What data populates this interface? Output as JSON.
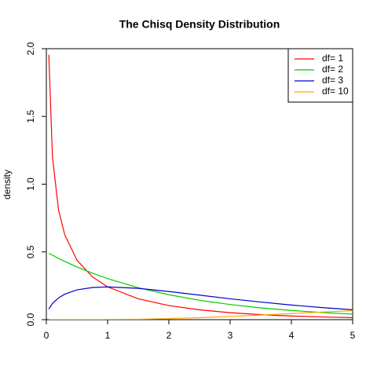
{
  "chart_data": {
    "type": "line",
    "title": "The Chisq Density Distribution",
    "y_label": "density",
    "x": [
      0.04,
      0.1,
      0.2,
      0.3,
      0.5,
      0.75,
      1,
      1.5,
      2,
      2.5,
      3,
      3.5,
      4,
      4.5,
      5
    ],
    "series": [
      {
        "name": "df= 1",
        "color": "#ff0000",
        "values": [
          1.955,
          1.2,
          0.807,
          0.627,
          0.439,
          0.317,
          0.242,
          0.154,
          0.104,
          0.0723,
          0.0514,
          0.0371,
          0.027,
          0.0198,
          0.0146
        ]
      },
      {
        "name": "df= 2",
        "color": "#00cc00",
        "values": [
          0.49,
          0.476,
          0.452,
          0.43,
          0.389,
          0.344,
          0.303,
          0.236,
          0.184,
          0.143,
          0.112,
          0.087,
          0.068,
          0.053,
          0.041
        ]
      },
      {
        "name": "df= 3",
        "color": "#0000cc",
        "values": [
          0.078,
          0.12,
          0.161,
          0.188,
          0.22,
          0.237,
          0.242,
          0.231,
          0.208,
          0.181,
          0.154,
          0.13,
          0.108,
          0.089,
          0.073
        ]
      },
      {
        "name": "df= 10",
        "color": "#ffa500",
        "values": [
          0,
          0,
          0,
          0,
          0,
          0,
          0.0008,
          0.0031,
          0.0077,
          0.0146,
          0.0235,
          0.034,
          0.0451,
          0.0563,
          0.0668
        ]
      }
    ],
    "xlim": [
      0,
      5
    ],
    "xticks": [
      0,
      1,
      2,
      3,
      4,
      5
    ],
    "ylim": [
      0,
      2
    ],
    "yticks": [
      {
        "value": 0,
        "label": "0.0"
      },
      {
        "value": 0.5,
        "label": "0.5"
      },
      {
        "value": 1,
        "label": "1.0"
      },
      {
        "value": 1.5,
        "label": "1.5"
      },
      {
        "value": 2,
        "label": "2.0"
      }
    ],
    "legend": "top-right"
  }
}
